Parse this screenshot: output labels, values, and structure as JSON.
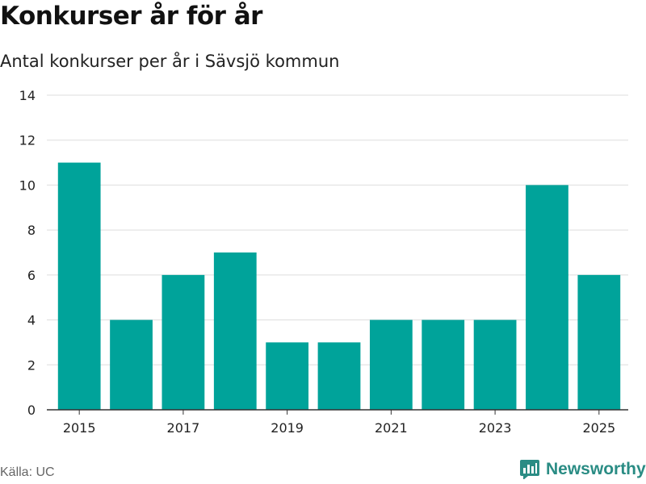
{
  "header": {
    "title": "Konkurser år för år",
    "subtitle": "Antal konkurser per år i Sävsjö kommun"
  },
  "footer": {
    "source": "Källa: UC",
    "brand": "Newsworthy"
  },
  "colors": {
    "bar": "#00a39a",
    "grid": "#dddddd",
    "axis": "#333333",
    "brand": "#2a8c84"
  },
  "chart_data": {
    "type": "bar",
    "title": "Konkurser år för år",
    "subtitle": "Antal konkurser per år i Sävsjö kommun",
    "xlabel": "",
    "ylabel": "",
    "categories": [
      2015,
      2016,
      2017,
      2018,
      2019,
      2020,
      2021,
      2022,
      2023,
      2024,
      2025
    ],
    "values": [
      11,
      4,
      6,
      7,
      3,
      3,
      4,
      4,
      4,
      10,
      6
    ],
    "x_tick_labels": [
      "2015",
      "2017",
      "2019",
      "2021",
      "2023",
      "2025"
    ],
    "y_ticks": [
      0,
      2,
      4,
      6,
      8,
      10,
      12,
      14
    ],
    "ylim": [
      0,
      14
    ],
    "grid": true,
    "legend": "none"
  }
}
